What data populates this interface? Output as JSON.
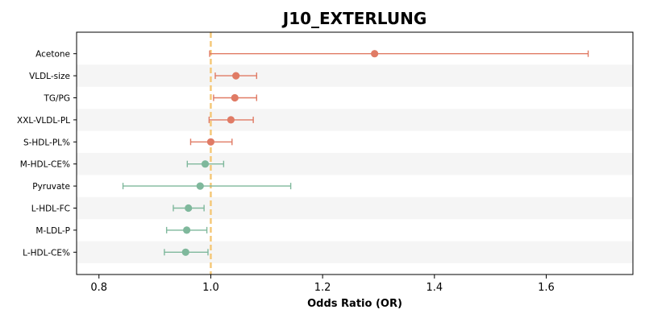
{
  "chart_data": {
    "type": "forest",
    "title": "J10_EXTERLUNG",
    "xlabel": "Odds Ratio (OR)",
    "ylabel": "",
    "xlim": [
      0.76,
      1.755
    ],
    "xticks": [
      0.8,
      1.0,
      1.2,
      1.4,
      1.6
    ],
    "xtick_labels": [
      "0.8",
      "1.0",
      "1.2",
      "1.4",
      "1.6"
    ],
    "reference_line": 1.0,
    "colors": {
      "positive": "#e07b65",
      "negative": "#7fb89c",
      "reference": "#f5c879",
      "band": "#f5f5f5"
    },
    "rows": [
      {
        "label": "Acetone",
        "or": 1.293,
        "lower": 0.998,
        "upper": 1.675,
        "direction": "positive"
      },
      {
        "label": "VLDL-size",
        "or": 1.045,
        "lower": 1.008,
        "upper": 1.082,
        "direction": "positive"
      },
      {
        "label": "TG/PG",
        "or": 1.043,
        "lower": 1.005,
        "upper": 1.082,
        "direction": "positive"
      },
      {
        "label": "XXL-VLDL-PL",
        "or": 1.036,
        "lower": 0.997,
        "upper": 1.076,
        "direction": "positive"
      },
      {
        "label": "S-HDL-PL%",
        "or": 1.0,
        "lower": 0.964,
        "upper": 1.038,
        "direction": "positive"
      },
      {
        "label": "M-HDL-CE%",
        "or": 0.99,
        "lower": 0.958,
        "upper": 1.023,
        "direction": "negative"
      },
      {
        "label": "Pyruvate",
        "or": 0.981,
        "lower": 0.843,
        "upper": 1.143,
        "direction": "negative"
      },
      {
        "label": "L-HDL-FC",
        "or": 0.96,
        "lower": 0.933,
        "upper": 0.988,
        "direction": "negative"
      },
      {
        "label": "M-LDL-P",
        "or": 0.957,
        "lower": 0.921,
        "upper": 0.993,
        "direction": "negative"
      },
      {
        "label": "L-HDL-CE%",
        "or": 0.955,
        "lower": 0.917,
        "upper": 0.995,
        "direction": "negative"
      }
    ]
  }
}
